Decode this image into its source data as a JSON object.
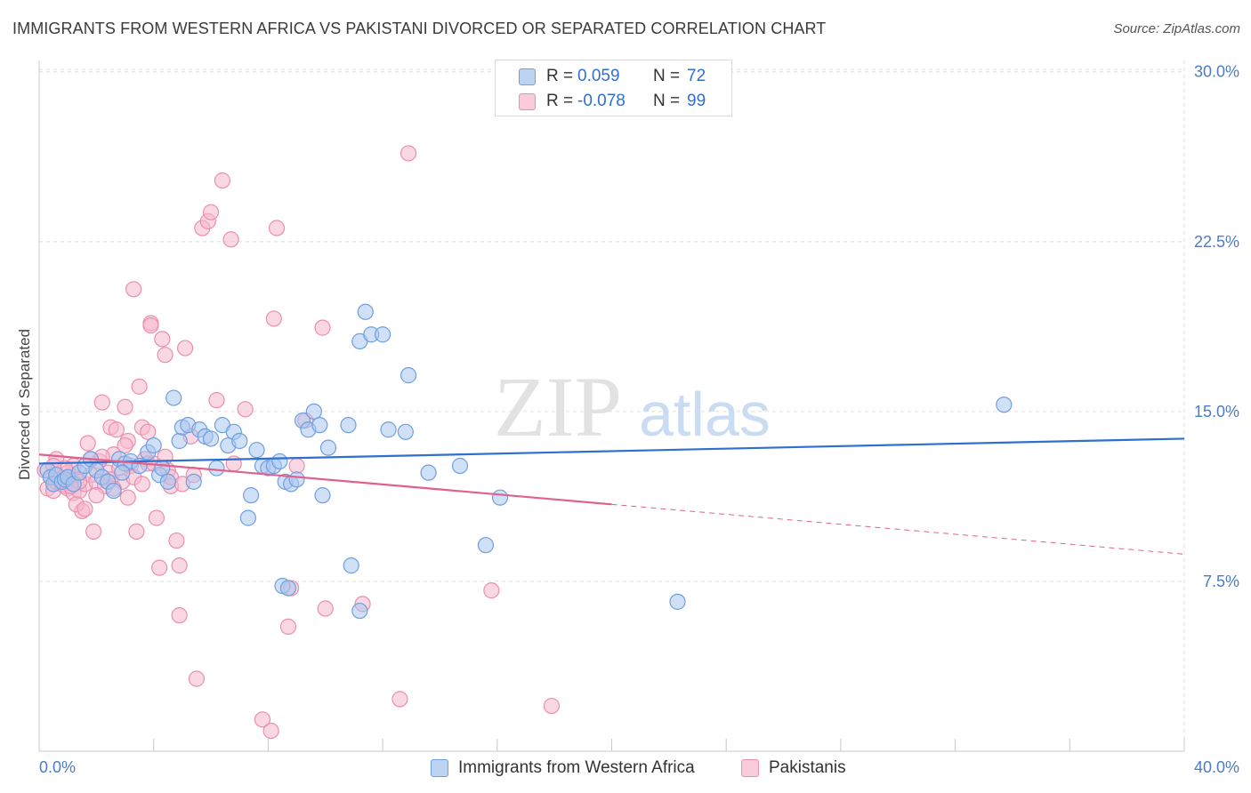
{
  "title": "IMMIGRANTS FROM WESTERN AFRICA VS PAKISTANI DIVORCED OR SEPARATED CORRELATION CHART",
  "source": "Source: ZipAtlas.com",
  "watermark": {
    "zip": "ZIP",
    "atlas": "atlas"
  },
  "legend": {
    "rows": [
      {
        "r_label": "R =",
        "r_value": "0.059",
        "n_label": "N =",
        "n_value": "72"
      },
      {
        "r_label": "R =",
        "r_value": "-0.078",
        "n_label": "N =",
        "n_value": "99"
      }
    ]
  },
  "bottom_legend": [
    {
      "label": "Immigrants from Western Africa"
    },
    {
      "label": "Pakistanis"
    }
  ],
  "colors": {
    "blue_fill": "#aac7ee",
    "blue_stroke": "#6f9fe0",
    "blue_line": "#2f6fcf",
    "pink_fill": "#f6b8cc",
    "pink_stroke": "#ea8fae",
    "pink_line": "#e0608e",
    "tick_text": "#4a7cc7",
    "grid": "#dddddd"
  },
  "chart_data": {
    "type": "scatter",
    "title": "IMMIGRANTS FROM WESTERN AFRICA VS PAKISTANI DIVORCED OR SEPARATED CORRELATION CHART",
    "xlabel": "",
    "ylabel": "Divorced or Separated",
    "xlim": [
      0,
      40
    ],
    "ylim": [
      0,
      30.5
    ],
    "x_ticks": [
      {
        "value": 0,
        "label": "0.0%"
      },
      {
        "value": 40,
        "label": "40.0%"
      }
    ],
    "x_minor_ticks": [
      4,
      8,
      12,
      16,
      20,
      24,
      28,
      32,
      36,
      40
    ],
    "y_ticks": [
      {
        "value": 7.5,
        "label": "7.5%"
      },
      {
        "value": 15,
        "label": "15.0%"
      },
      {
        "value": 22.5,
        "label": "22.5%"
      },
      {
        "value": 30,
        "label": "30.0%"
      }
    ],
    "grid": true,
    "legend_position": "top-center",
    "series": [
      {
        "name": "Immigrants from Western Africa",
        "color": "#6f9fe0",
        "trend": {
          "x0": 0,
          "y0": 12.7,
          "x1": 40,
          "y1": 13.8,
          "dashed_from": null
        },
        "points": [
          [
            0.3,
            12.4
          ],
          [
            0.4,
            12.1
          ],
          [
            0.5,
            11.8
          ],
          [
            0.6,
            12.2
          ],
          [
            0.8,
            11.9
          ],
          [
            0.9,
            12.0
          ],
          [
            1.0,
            12.1
          ],
          [
            1.2,
            11.8
          ],
          [
            1.4,
            12.3
          ],
          [
            1.6,
            12.6
          ],
          [
            1.8,
            12.9
          ],
          [
            2.0,
            12.4
          ],
          [
            2.2,
            12.1
          ],
          [
            2.4,
            11.9
          ],
          [
            2.6,
            11.5
          ],
          [
            2.8,
            12.9
          ],
          [
            3.0,
            12.7
          ],
          [
            3.2,
            12.8
          ],
          [
            3.5,
            12.6
          ],
          [
            3.8,
            13.2
          ],
          [
            4.0,
            13.5
          ],
          [
            4.2,
            12.2
          ],
          [
            4.3,
            12.5
          ],
          [
            4.5,
            11.9
          ],
          [
            4.7,
            15.6
          ],
          [
            4.9,
            13.7
          ],
          [
            5.0,
            14.3
          ],
          [
            5.2,
            14.4
          ],
          [
            5.4,
            11.9
          ],
          [
            5.6,
            14.2
          ],
          [
            5.8,
            13.9
          ],
          [
            6.0,
            13.8
          ],
          [
            6.2,
            12.5
          ],
          [
            6.4,
            14.4
          ],
          [
            6.6,
            13.5
          ],
          [
            6.8,
            14.1
          ],
          [
            7.0,
            13.7
          ],
          [
            7.3,
            10.3
          ],
          [
            7.4,
            11.3
          ],
          [
            7.6,
            13.3
          ],
          [
            7.8,
            12.6
          ],
          [
            8.0,
            12.5
          ],
          [
            8.2,
            12.6
          ],
          [
            8.4,
            12.8
          ],
          [
            8.6,
            11.9
          ],
          [
            8.8,
            11.8
          ],
          [
            9.0,
            12.0
          ],
          [
            9.2,
            14.6
          ],
          [
            9.4,
            14.2
          ],
          [
            9.6,
            15.0
          ],
          [
            9.9,
            11.3
          ],
          [
            10.1,
            13.4
          ],
          [
            10.8,
            14.4
          ],
          [
            11.2,
            18.1
          ],
          [
            11.4,
            19.4
          ],
          [
            11.6,
            18.4
          ],
          [
            12.0,
            18.4
          ],
          [
            12.2,
            14.2
          ],
          [
            12.8,
            14.1
          ],
          [
            12.9,
            16.6
          ],
          [
            13.6,
            12.3
          ],
          [
            14.7,
            12.6
          ],
          [
            15.6,
            9.1
          ],
          [
            16.1,
            11.2
          ],
          [
            9.8,
            14.4
          ],
          [
            8.5,
            7.3
          ],
          [
            10.9,
            8.2
          ],
          [
            11.2,
            6.2
          ],
          [
            22.3,
            6.6
          ],
          [
            33.7,
            15.3
          ],
          [
            8.7,
            7.2
          ],
          [
            2.9,
            12.3
          ]
        ]
      },
      {
        "name": "Pakistanis",
        "color": "#ea8fae",
        "trend": {
          "x0": 0,
          "y0": 13.1,
          "x1": 40,
          "y1": 8.7,
          "dashed_from": 20
        },
        "points": [
          [
            0.2,
            12.4
          ],
          [
            0.3,
            11.6
          ],
          [
            0.4,
            12.1
          ],
          [
            0.5,
            11.5
          ],
          [
            0.6,
            11.9
          ],
          [
            0.7,
            12.0
          ],
          [
            0.8,
            11.8
          ],
          [
            0.9,
            11.7
          ],
          [
            1.0,
            11.6
          ],
          [
            1.1,
            12.2
          ],
          [
            1.2,
            11.4
          ],
          [
            1.3,
            12.0
          ],
          [
            1.4,
            11.5
          ],
          [
            1.5,
            10.6
          ],
          [
            1.6,
            11.8
          ],
          [
            1.7,
            13.6
          ],
          [
            1.8,
            12.2
          ],
          [
            1.9,
            9.7
          ],
          [
            2.0,
            11.9
          ],
          [
            2.1,
            12.8
          ],
          [
            2.2,
            15.4
          ],
          [
            2.3,
            11.7
          ],
          [
            2.4,
            12.3
          ],
          [
            2.5,
            14.3
          ],
          [
            2.6,
            13.1
          ],
          [
            2.7,
            14.2
          ],
          [
            2.8,
            12.5
          ],
          [
            2.9,
            11.9
          ],
          [
            3.0,
            15.2
          ],
          [
            3.1,
            13.7
          ],
          [
            3.2,
            12.6
          ],
          [
            3.3,
            12.1
          ],
          [
            3.4,
            9.7
          ],
          [
            3.5,
            16.1
          ],
          [
            3.6,
            14.3
          ],
          [
            3.7,
            12.9
          ],
          [
            3.8,
            12.7
          ],
          [
            3.9,
            18.9
          ],
          [
            4.1,
            10.3
          ],
          [
            4.2,
            8.1
          ],
          [
            4.3,
            18.2
          ],
          [
            4.4,
            17.5
          ],
          [
            4.5,
            12.4
          ],
          [
            4.6,
            11.7
          ],
          [
            4.8,
            9.3
          ],
          [
            4.9,
            8.2
          ],
          [
            5.1,
            17.8
          ],
          [
            5.3,
            13.9
          ],
          [
            5.5,
            3.2
          ],
          [
            5.7,
            23.1
          ],
          [
            5.9,
            23.4
          ],
          [
            6.0,
            23.8
          ],
          [
            6.2,
            15.5
          ],
          [
            6.4,
            25.2
          ],
          [
            6.7,
            22.6
          ],
          [
            6.8,
            12.7
          ],
          [
            7.2,
            15.1
          ],
          [
            7.8,
            1.4
          ],
          [
            8.1,
            0.9
          ],
          [
            8.2,
            19.1
          ],
          [
            8.3,
            23.1
          ],
          [
            8.7,
            5.5
          ],
          [
            9.0,
            12.6
          ],
          [
            9.3,
            14.6
          ],
          [
            9.9,
            18.7
          ],
          [
            10.0,
            6.3
          ],
          [
            11.3,
            6.5
          ],
          [
            12.6,
            2.3
          ],
          [
            12.9,
            26.4
          ],
          [
            15.8,
            7.1
          ],
          [
            17.9,
            2.0
          ],
          [
            3.3,
            20.4
          ],
          [
            3.9,
            18.8
          ],
          [
            1.2,
            12.6
          ],
          [
            2.5,
            12.0
          ],
          [
            3.1,
            11.2
          ],
          [
            0.6,
            12.9
          ],
          [
            1.0,
            12.3
          ],
          [
            1.4,
            11.9
          ],
          [
            2.0,
            11.3
          ],
          [
            2.6,
            11.6
          ],
          [
            3.6,
            11.8
          ],
          [
            4.0,
            12.7
          ],
          [
            4.6,
            12.1
          ],
          [
            5.0,
            11.8
          ],
          [
            1.3,
            10.9
          ],
          [
            1.6,
            10.7
          ],
          [
            2.4,
            11.9
          ],
          [
            3.0,
            13.5
          ],
          [
            3.8,
            14.1
          ],
          [
            4.4,
            13.0
          ],
          [
            5.4,
            12.2
          ],
          [
            0.9,
            12.5
          ],
          [
            1.8,
            12.9
          ],
          [
            2.2,
            13.0
          ],
          [
            1.1,
            11.7
          ],
          [
            0.5,
            12.6
          ],
          [
            4.9,
            6.0
          ],
          [
            8.8,
            7.2
          ]
        ]
      }
    ]
  }
}
